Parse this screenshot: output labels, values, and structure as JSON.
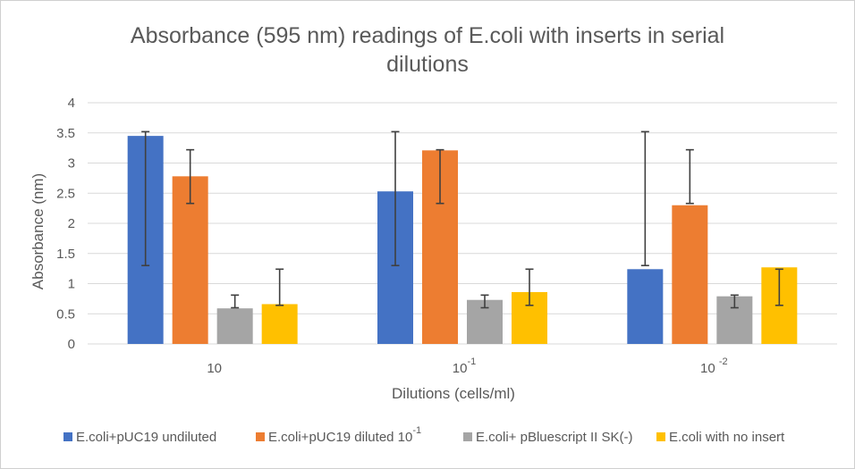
{
  "chart_data": {
    "type": "bar",
    "title_lines": [
      "Absorbance (595 nm) readings of E.coli with inserts in serial",
      "dilutions"
    ],
    "xlabel": "Dilutions (cells/ml)",
    "ylabel": "Absorbance (nm)",
    "ylim": [
      0,
      4
    ],
    "y_ticks": [
      "0",
      "0.5",
      "1",
      "1.5",
      "2",
      "2.5",
      "3",
      "3.5",
      "4"
    ],
    "y_tick_values": [
      0,
      0.5,
      1,
      1.5,
      2,
      2.5,
      3,
      3.5,
      4
    ],
    "grid": true,
    "legend_position": "bottom",
    "categories": [
      {
        "base": "10",
        "exp": ""
      },
      {
        "base": "10",
        "exp": "-1"
      },
      {
        "base": "10 ",
        "exp": "-2"
      }
    ],
    "series": [
      {
        "name": "E.coli+pUC19 undiluted",
        "name_sup": "",
        "color": "#4472c4",
        "values": [
          3.45,
          2.53,
          1.24
        ],
        "err_low": [
          1.3,
          1.3,
          1.3
        ],
        "err_high": [
          3.52,
          3.52,
          3.52
        ]
      },
      {
        "name": "E.coli+pUC19 diluted 10",
        "name_sup": "-1",
        "color": "#ed7d31",
        "values": [
          2.78,
          3.21,
          2.3
        ],
        "err_low": [
          2.33,
          2.33,
          2.33
        ],
        "err_high": [
          3.22,
          3.22,
          3.22
        ]
      },
      {
        "name": "E.coli+ pBluescript II SK(-)",
        "name_sup": "",
        "color": "#a5a5a5",
        "values": [
          0.59,
          0.73,
          0.79
        ],
        "err_low": [
          0.6,
          0.6,
          0.6
        ],
        "err_high": [
          0.81,
          0.81,
          0.81
        ]
      },
      {
        "name": "E.coli with no insert",
        "name_sup": "",
        "color": "#ffc000",
        "values": [
          0.66,
          0.86,
          1.27
        ],
        "err_low": [
          0.64,
          0.64,
          0.64
        ],
        "err_high": [
          1.24,
          1.24,
          1.24
        ]
      }
    ]
  }
}
